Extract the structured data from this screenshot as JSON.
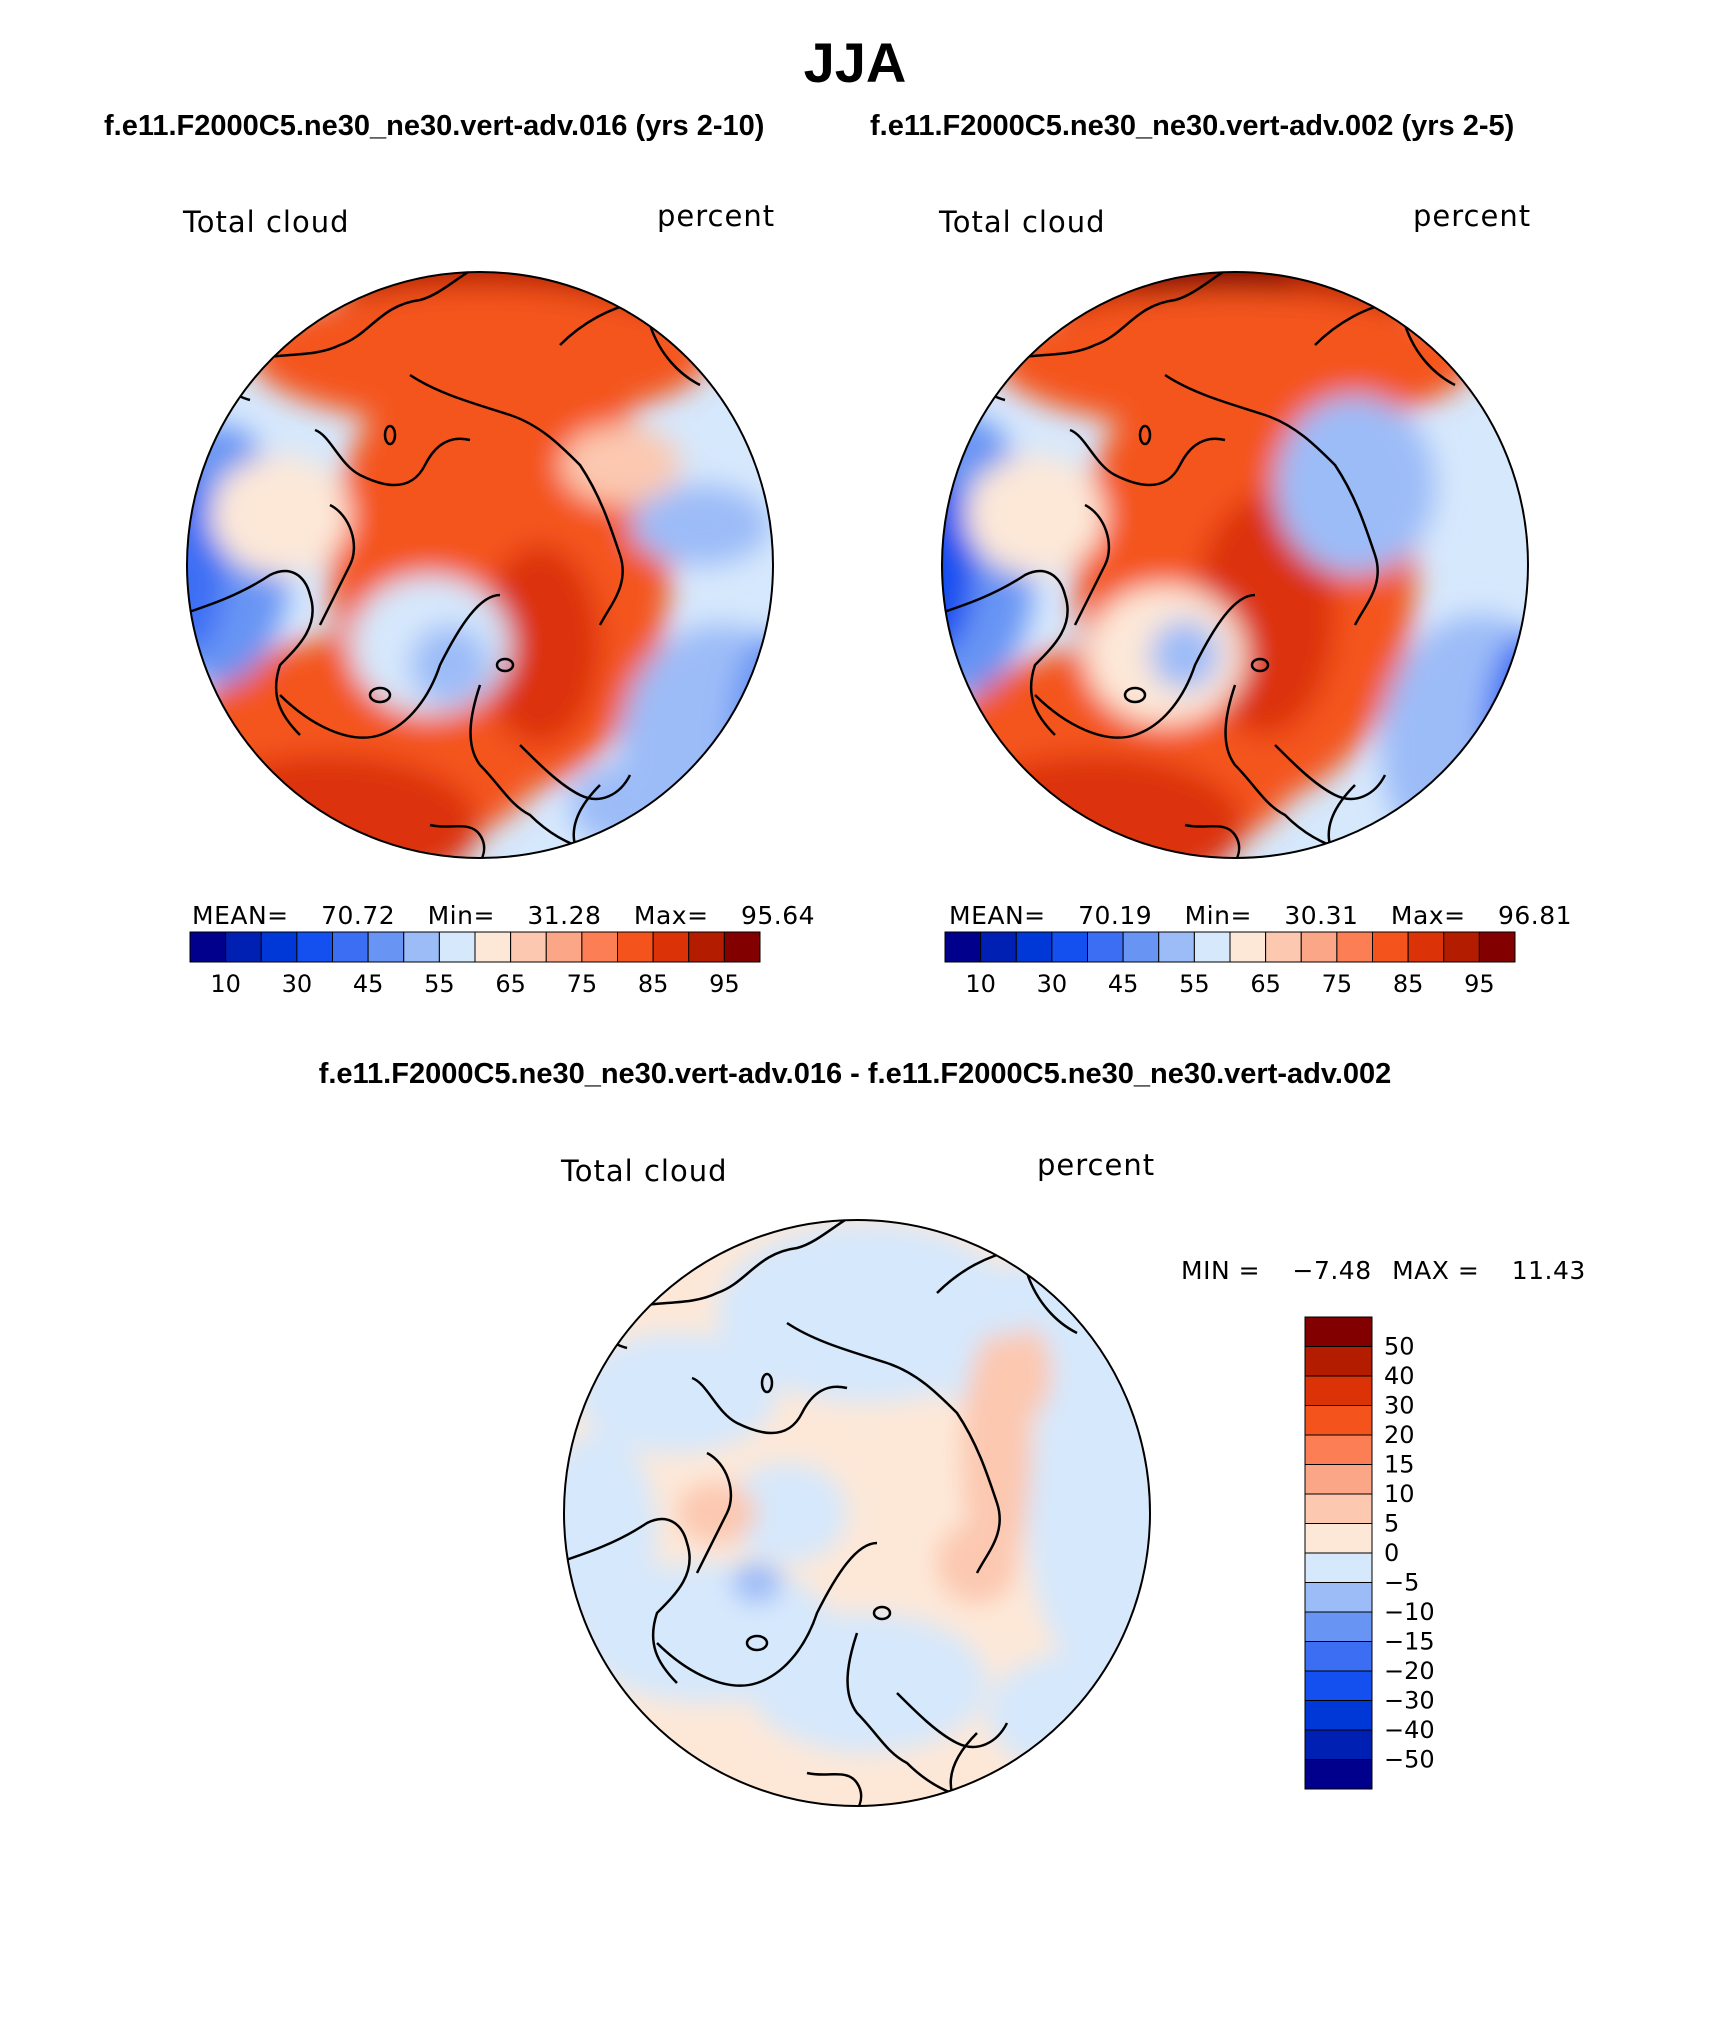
{
  "figure": {
    "title": "JJA",
    "left_case": "f.e11.F2000C5.ne30_ne30.vert-adv.016 (yrs 2-10)",
    "right_case": "f.e11.F2000C5.ne30_ne30.vert-adv.002 (yrs 2-5)",
    "diff_title": "f.e11.F2000C5.ne30_ne30.vert-adv.016 - f.e11.F2000C5.ne30_ne30.vert-adv.002"
  },
  "panels": {
    "left": {
      "variable": "Total cloud",
      "units": "percent",
      "mean_label": "MEAN=",
      "mean": "70.72",
      "min_label": "Min=",
      "min": "31.28",
      "max_label": "Max=",
      "max": "95.64"
    },
    "right": {
      "variable": "Total cloud",
      "units": "percent",
      "mean_label": "MEAN=",
      "mean": "70.19",
      "min_label": "Min=",
      "min": "30.31",
      "max_label": "Max=",
      "max": "96.81"
    },
    "diff": {
      "variable": "Total cloud",
      "units": "percent",
      "min_label": "MIN =",
      "min": "−7.48",
      "max_label": "MAX =",
      "max": "11.43"
    }
  },
  "colorbars": {
    "abs": {
      "colors": [
        "#00008c",
        "#0020b4",
        "#0038d8",
        "#1450f0",
        "#3c6ef4",
        "#6894f4",
        "#9cbcf8",
        "#d6e8fc",
        "#fde8d8",
        "#fcc8b0",
        "#fca688",
        "#fc7e54",
        "#f4541c",
        "#dc3208",
        "#b41c00",
        "#820000"
      ],
      "tick_labels": [
        "10",
        "30",
        "45",
        "55",
        "65",
        "75",
        "85",
        "95"
      ]
    },
    "diff": {
      "colors": [
        "#00008c",
        "#0020b4",
        "#0038d8",
        "#1450f0",
        "#3c6ef4",
        "#6894f4",
        "#9cbcf8",
        "#d6e8fc",
        "#fde8d8",
        "#fcc8b0",
        "#fca688",
        "#fc7e54",
        "#f4541c",
        "#dc3208",
        "#b41c00",
        "#820000"
      ],
      "tick_labels": [
        "50",
        "40",
        "30",
        "20",
        "15",
        "10",
        "5",
        "0",
        "−5",
        "−10",
        "−15",
        "−20",
        "−30",
        "−40",
        "−50"
      ]
    }
  }
}
